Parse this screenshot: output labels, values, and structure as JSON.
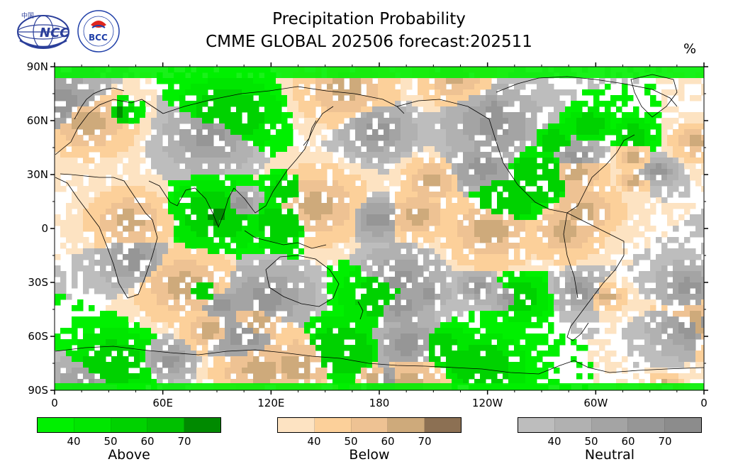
{
  "header": {
    "title_line1": "Precipitation Probability",
    "title_line2": "CMME GLOBAL 202506 forecast:202511",
    "unit": "%"
  },
  "logos": {
    "ncc": {
      "text": "NCC",
      "cn": "中国",
      "icon": "ncc-globe-logo",
      "color": "#2b3f9a"
    },
    "bcc": {
      "text": "BCC",
      "icon": "bcc-logo",
      "color": "#1f3fa8",
      "accent": "#e0261e"
    }
  },
  "map": {
    "lat_labels": [
      "90N",
      "60N",
      "30N",
      "0",
      "30S",
      "60S",
      "90S"
    ],
    "lat_values": [
      90,
      60,
      30,
      0,
      -30,
      -60,
      -90
    ],
    "lon_labels": [
      "0",
      "60E",
      "120E",
      "180",
      "120W",
      "60W",
      "0"
    ],
    "lon_values": [
      0,
      60,
      120,
      180,
      240,
      300,
      360
    ],
    "ocean_color": "#ffffff",
    "coast_color": "#000000"
  },
  "legends": [
    {
      "name": "Above",
      "colors": [
        "#00f000",
        "#00e600",
        "#00d200",
        "#00c000",
        "#008a00"
      ],
      "ticks": [
        "40",
        "50",
        "60",
        "70"
      ]
    },
    {
      "name": "Below",
      "colors": [
        "#fde3c2",
        "#fcd09a",
        "#eec293",
        "#ceaa7b",
        "#8c7053"
      ],
      "ticks": [
        "40",
        "50",
        "60",
        "70"
      ]
    },
    {
      "name": "Neutral",
      "colors": [
        "#bdbdbd",
        "#b1b1b1",
        "#a4a4a4",
        "#969696",
        "#8c8c8c"
      ],
      "ticks": [
        "40",
        "50",
        "60",
        "70"
      ]
    }
  ]
}
